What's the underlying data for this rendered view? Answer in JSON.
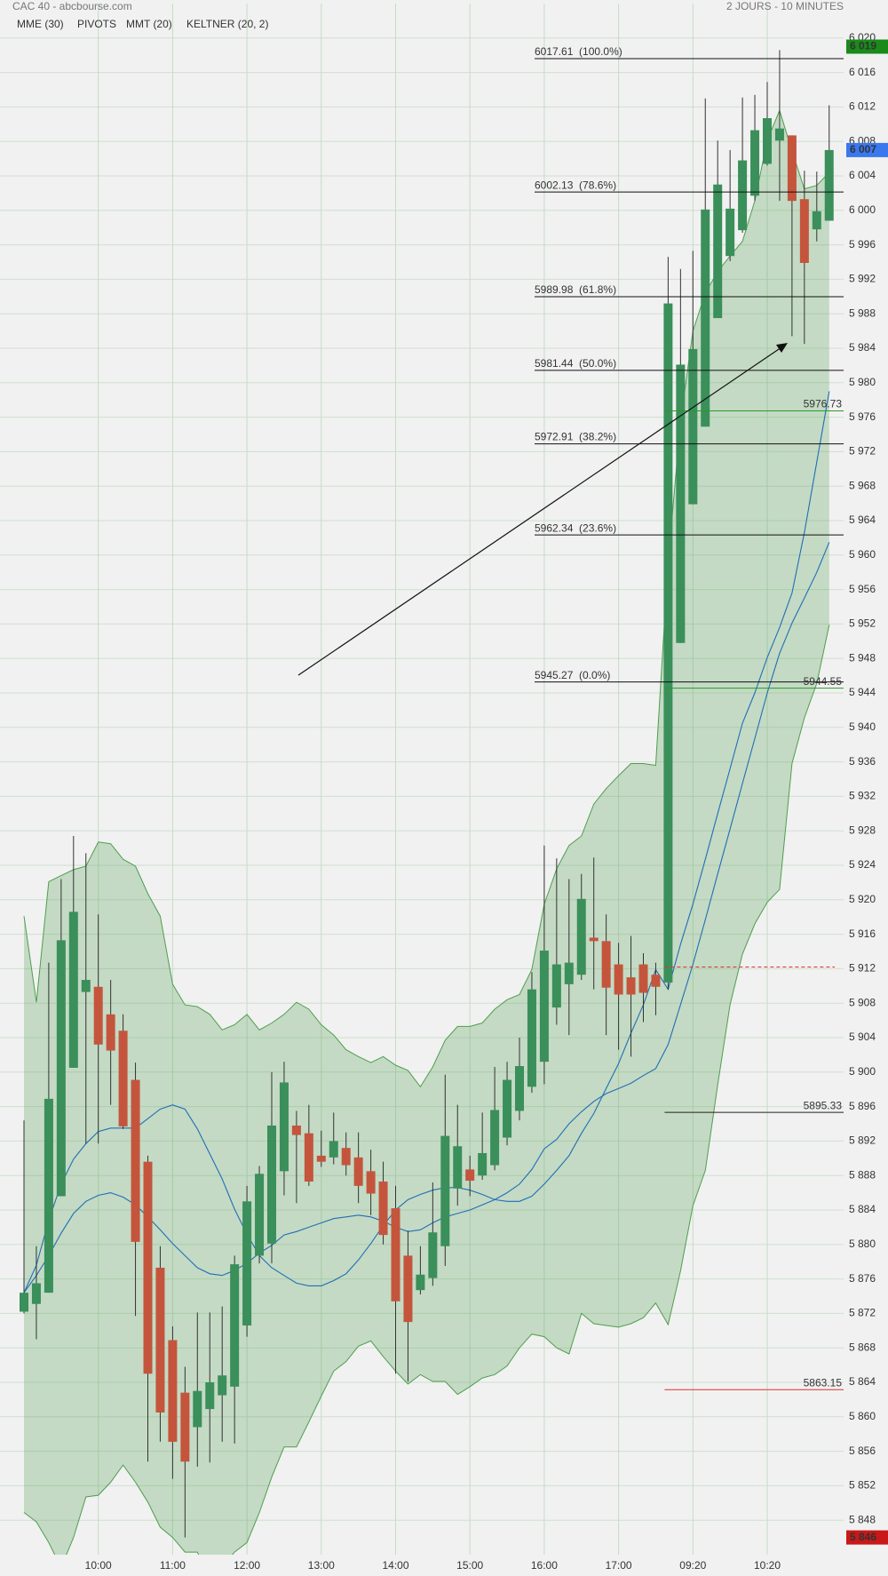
{
  "chart_data": {
    "type": "candlestick",
    "title": "CAC 40 - abcbourse.com",
    "subtitle": "2 JOURS - 10 MINUTES",
    "categories": [
      null,
      null,
      null,
      null,
      null,
      null,
      "10:00",
      null,
      null,
      null,
      null,
      null,
      "11:00",
      null,
      null,
      null,
      null,
      null,
      "12:00",
      null,
      null,
      null,
      null,
      null,
      "13:00",
      null,
      null,
      null,
      null,
      null,
      "14:00",
      null,
      null,
      null,
      null,
      null,
      "15:00",
      null,
      null,
      null,
      null,
      null,
      "16:00",
      null,
      null,
      null,
      null,
      null,
      "17:00",
      null,
      null,
      null,
      null,
      null,
      "09:20",
      null,
      null,
      null,
      null,
      null,
      "10:20",
      null,
      null,
      null,
      null,
      null
    ],
    "open": [
      5872.2,
      5873.1,
      5874.4,
      5885.6,
      5900.5,
      5909.3,
      5909.9,
      5906.7,
      5904.8,
      5899.1,
      5889.6,
      5877.3,
      5868.9,
      5862.8,
      5858.8,
      5860.9,
      5862.5,
      5863.5,
      5870.6,
      5878.7,
      5880.1,
      5888.5,
      5893.8,
      5892.9,
      5890.3,
      5890.1,
      5891.2,
      5890.1,
      5888.5,
      5887.3,
      5884.2,
      5878.7,
      5874.7,
      5876.1,
      5879.8,
      5886.5,
      5888.7,
      5888.0,
      5889.2,
      5892.4,
      5895.5,
      5898.3,
      5901.2,
      5907.5,
      5910.2,
      5911.3,
      5915.6,
      5915.2,
      5912.5,
      5911.0,
      5912.5,
      5911.3,
      5910.4,
      5949.8,
      5965.9,
      5974.9,
      5987.5,
      5994.7,
      5997.7,
      6001.7,
      6005.4,
      6008.1,
      6008.7,
      6001.3,
      5997.8,
      5998.8
    ],
    "high": [
      5894.4,
      5879.8,
      5912.7,
      5922.4,
      5927.4,
      5925.4,
      5918.3,
      5910.7,
      5906.7,
      5901.1,
      5890.3,
      5879.8,
      5870.5,
      5865.8,
      5872.1,
      5872.1,
      5872.8,
      5878.7,
      5886.8,
      5889.1,
      5900.0,
      5901.2,
      5895.5,
      5896.2,
      5893.2,
      5895.3,
      5893.0,
      5893.0,
      5891.0,
      5889.6,
      5886.8,
      5881.6,
      5879.8,
      5887.2,
      5899.7,
      5896.2,
      5890.3,
      5895.3,
      5900.6,
      5901.2,
      5904.0,
      5911.6,
      5926.3,
      5924.8,
      5922.4,
      5923.0,
      5924.9,
      5918.3,
      5915.0,
      5915.8,
      5913.8,
      5912.7,
      5994.6,
      5993.2,
      5995.3,
      6013.0,
      6008.1,
      6007.0,
      6013.1,
      6013.4,
      6014.9,
      6018.6,
      6008.7,
      6004.6,
      6004.5,
      6012.2
    ],
    "low": [
      5872.0,
      5869.0,
      5874.4,
      5885.6,
      5900.5,
      5891.7,
      5891.7,
      5896.2,
      5893.4,
      5871.7,
      5854.8,
      5857.1,
      5852.8,
      5846.0,
      5854.2,
      5854.7,
      5857.1,
      5856.9,
      5869.3,
      5877.8,
      5877.8,
      5885.7,
      5884.8,
      5886.8,
      5889.0,
      5889.3,
      5888.0,
      5884.8,
      5883.4,
      5880.0,
      5865.0,
      5864.1,
      5874.2,
      5875.2,
      5877.5,
      5884.5,
      5885.6,
      5887.5,
      5888.6,
      5891.5,
      5894.4,
      5897.6,
      5898.6,
      5905.5,
      5904.3,
      5910.7,
      5909.6,
      5904.3,
      5902.6,
      5901.8,
      5905.8,
      5906.6,
      5909.6,
      5949.8,
      5965.9,
      5974.9,
      5987.5,
      5994.1,
      5997.4,
      6001.1,
      6005.2,
      6001.1,
      5985.4,
      5984.5,
      5996.4,
      5998.8
    ],
    "close": [
      5874.4,
      5875.5,
      5896.9,
      5915.3,
      5918.6,
      5910.7,
      5903.2,
      5902.5,
      5893.7,
      5880.3,
      5865.0,
      5860.5,
      5857.1,
      5854.8,
      5863.0,
      5864.0,
      5864.8,
      5877.7,
      5885.0,
      5888.2,
      5893.8,
      5898.8,
      5892.7,
      5887.3,
      5889.6,
      5892.0,
      5889.2,
      5886.8,
      5885.9,
      5881.1,
      5873.4,
      5871.0,
      5876.5,
      5881.4,
      5892.6,
      5891.4,
      5887.4,
      5890.6,
      5895.6,
      5899.1,
      5900.7,
      5909.6,
      5914.1,
      5912.5,
      5912.7,
      5920.1,
      5915.2,
      5909.8,
      5909.0,
      5909.0,
      5909.2,
      5909.9,
      5989.2,
      5982.1,
      5983.9,
      6000.1,
      6003.0,
      6000.2,
      6005.8,
      6009.3,
      6010.7,
      6009.5,
      6001.1,
      5993.9,
      5999.9,
      6007.0
    ],
    "up_color": "#3a8f5a",
    "down_color": "#c4553c",
    "keltner": {
      "name": "KELTNER (20, 2)",
      "color": "#4e9e4e",
      "upper": [
        5918.1,
        5908.1,
        5922.1,
        5922.8,
        5923.5,
        5923.9,
        5926.7,
        5926.5,
        5924.7,
        5923.9,
        5920.7,
        5918.1,
        5910.2,
        5907.8,
        5907.6,
        5906.7,
        5904.9,
        5905.5,
        5906.7,
        5904.9,
        5905.7,
        5906.7,
        5908.1,
        5907.3,
        5905.5,
        5904.3,
        5902.6,
        5901.8,
        5901.1,
        5901.8,
        5900.8,
        5900.2,
        5898.3,
        5900.6,
        5903.7,
        5905.3,
        5905.3,
        5905.7,
        5907.3,
        5908.4,
        5909.0,
        5911.9,
        5919.5,
        5923.6,
        5926.3,
        5927.4,
        5931.1,
        5932.9,
        5934.4,
        5935.8,
        5935.8,
        5935.6,
        5959.1,
        5975.5,
        5986.0,
        5990.4,
        5992.9,
        5994.7,
        5996.4,
        6001.1,
        6008.1,
        6011.6,
        6006.9,
        6002.5,
        6002.9,
        6004.4
      ],
      "lower": [
        5848.9,
        5847.8,
        5845.4,
        5842.5,
        5846.0,
        5850.7,
        5850.9,
        5852.4,
        5854.4,
        5852.4,
        5850.1,
        5847.2,
        5846.0,
        5844.3,
        5844.3,
        5840.8,
        5842.5,
        5844.3,
        5845.4,
        5848.9,
        5853.0,
        5856.5,
        5856.5,
        5859.4,
        5862.4,
        5865.3,
        5866.4,
        5868.2,
        5868.8,
        5867.0,
        5865.3,
        5863.8,
        5864.9,
        5864.1,
        5864.1,
        5862.6,
        5863.5,
        5864.5,
        5864.9,
        5865.9,
        5868.0,
        5869.6,
        5869.3,
        5868.0,
        5867.3,
        5872.0,
        5870.8,
        5870.6,
        5870.4,
        5870.8,
        5871.5,
        5873.2,
        5870.7,
        5876.9,
        5884.5,
        5888.6,
        5898.5,
        5907.8,
        5913.7,
        5917.2,
        5919.7,
        5921.2,
        5935.8,
        5941.1,
        5945.1,
        5951.9
      ]
    },
    "lines": [
      {
        "name": "MME (30)",
        "color": "#1f6fb5",
        "values": [
          5874.4,
          5876.4,
          5878.7,
          5881.3,
          5883.6,
          5885.0,
          5885.7,
          5886.0,
          5885.5,
          5884.6,
          5883.2,
          5881.7,
          5880.1,
          5878.7,
          5877.3,
          5876.6,
          5876.4,
          5877.0,
          5877.8,
          5879.0,
          5879.9,
          5881.1,
          5881.5,
          5882.0,
          5882.5,
          5883.0,
          5883.2,
          5883.4,
          5883.2,
          5882.7,
          5882.0,
          5881.5,
          5881.7,
          5882.5,
          5883.2,
          5883.6,
          5884.0,
          5884.6,
          5885.2,
          5886.0,
          5887.0,
          5888.7,
          5891.1,
          5892.2,
          5894.0,
          5895.4,
          5896.6,
          5897.5,
          5898.1,
          5898.7,
          5899.6,
          5900.4,
          5903.2,
          5907.8,
          5912.5,
          5917.7,
          5923.0,
          5928.2,
          5933.5,
          5938.7,
          5944.0,
          5948.6,
          5952.1,
          5955.0,
          5958.0,
          5961.5
        ]
      },
      {
        "name": "MMT (20)",
        "color": "#1f6fb5",
        "values": [
          5874.4,
          5877.6,
          5882.8,
          5887.0,
          5889.9,
          5891.7,
          5893.1,
          5893.5,
          5893.5,
          5893.5,
          5894.6,
          5895.7,
          5896.2,
          5895.7,
          5893.4,
          5890.5,
          5887.6,
          5884.1,
          5881.2,
          5878.7,
          5877.3,
          5876.4,
          5875.5,
          5875.2,
          5875.2,
          5875.8,
          5876.6,
          5878.2,
          5880.1,
          5882.2,
          5884.0,
          5885.2,
          5885.8,
          5886.3,
          5886.6,
          5886.6,
          5886.3,
          5885.8,
          5885.2,
          5885.0,
          5885.0,
          5885.6,
          5887.0,
          5888.6,
          5890.3,
          5892.9,
          5895.2,
          5898.1,
          5901.0,
          5904.5,
          5907.8,
          5911.9,
          5909.6,
          5914.8,
          5919.5,
          5924.7,
          5930.0,
          5935.2,
          5940.5,
          5944.0,
          5948.1,
          5951.6,
          5955.6,
          5962.6,
          5970.8,
          5979.0
        ]
      }
    ],
    "pivots": {
      "name": "PIVOTS",
      "color": "#555555",
      "levels": [
        {
          "value": 5976.73,
          "label": "5976.73",
          "color": "#2a9a2a"
        },
        {
          "value": 5944.55,
          "label": "5944.55",
          "color": "#2a9a2a"
        },
        {
          "value": 5895.33,
          "label": "5895.33",
          "color": "#222222"
        },
        {
          "value": 5863.15,
          "label": "5863.15",
          "color": "#e03030"
        }
      ]
    },
    "dashed_level": {
      "value": 5912.2,
      "color": "#e03030"
    },
    "fibonacci": [
      {
        "value": 6017.61,
        "label": "6017.61  (100.0%)"
      },
      {
        "value": 6002.13,
        "label": "6002.13  (78.6%)"
      },
      {
        "value": 5989.98,
        "label": "5989.98  (61.8%)"
      },
      {
        "value": 5981.44,
        "label": "5981.44  (50.0%)"
      },
      {
        "value": 5972.91,
        "label": "5972.91  (38.2%)"
      },
      {
        "value": 5962.34,
        "label": "5962.34  (23.6%)"
      },
      {
        "value": 5945.27,
        "label": "5945.27  (0.0%)"
      }
    ],
    "price_badges": [
      {
        "value": 6019,
        "label": "6 019",
        "color": "#1a8a1a"
      },
      {
        "value": 6007,
        "label": "6 007",
        "color": "#3a78f0"
      },
      {
        "value": 5846,
        "label": "5 846",
        "color": "#c81818"
      }
    ],
    "ylim": [
      5844,
      6024
    ],
    "yticks": [
      {
        "value": 5848,
        "label": "5 848"
      },
      {
        "value": 5852,
        "label": "5 852"
      },
      {
        "value": 5856,
        "label": "5 856"
      },
      {
        "value": 5860,
        "label": "5 860"
      },
      {
        "value": 5864,
        "label": "5 864"
      },
      {
        "value": 5868,
        "label": "5 868"
      },
      {
        "value": 5872,
        "label": "5 872"
      },
      {
        "value": 5876,
        "label": "5 876"
      },
      {
        "value": 5880,
        "label": "5 880"
      },
      {
        "value": 5884,
        "label": "5 884"
      },
      {
        "value": 5888,
        "label": "5 888"
      },
      {
        "value": 5892,
        "label": "5 892"
      },
      {
        "value": 5896,
        "label": "5 896"
      },
      {
        "value": 5900,
        "label": "5 900"
      },
      {
        "value": 5904,
        "label": "5 904"
      },
      {
        "value": 5908,
        "label": "5 908"
      },
      {
        "value": 5912,
        "label": "5 912"
      },
      {
        "value": 5916,
        "label": "5 916"
      },
      {
        "value": 5920,
        "label": "5 920"
      },
      {
        "value": 5924,
        "label": "5 924"
      },
      {
        "value": 5928,
        "label": "5 928"
      },
      {
        "value": 5932,
        "label": "5 932"
      },
      {
        "value": 5936,
        "label": "5 936"
      },
      {
        "value": 5940,
        "label": "5 940"
      },
      {
        "value": 5944,
        "label": "5 944"
      },
      {
        "value": 5948,
        "label": "5 948"
      },
      {
        "value": 5952,
        "label": "5 952"
      },
      {
        "value": 5956,
        "label": "5 956"
      },
      {
        "value": 5960,
        "label": "5 960"
      },
      {
        "value": 5964,
        "label": "5 964"
      },
      {
        "value": 5968,
        "label": "5 968"
      },
      {
        "value": 5972,
        "label": "5 972"
      },
      {
        "value": 5976,
        "label": "5 976"
      },
      {
        "value": 5980,
        "label": "5 980"
      },
      {
        "value": 5984,
        "label": "5 984"
      },
      {
        "value": 5988,
        "label": "5 988"
      },
      {
        "value": 5992,
        "label": "5 992"
      },
      {
        "value": 5996,
        "label": "5 996"
      },
      {
        "value": 6000,
        "label": "6 000"
      },
      {
        "value": 6004,
        "label": "6 004"
      },
      {
        "value": 6008,
        "label": "6 008"
      },
      {
        "value": 6012,
        "label": "6 012"
      },
      {
        "value": 6016,
        "label": "6 016"
      },
      {
        "value": 6020,
        "label": "6 020"
      }
    ],
    "grid": true
  }
}
